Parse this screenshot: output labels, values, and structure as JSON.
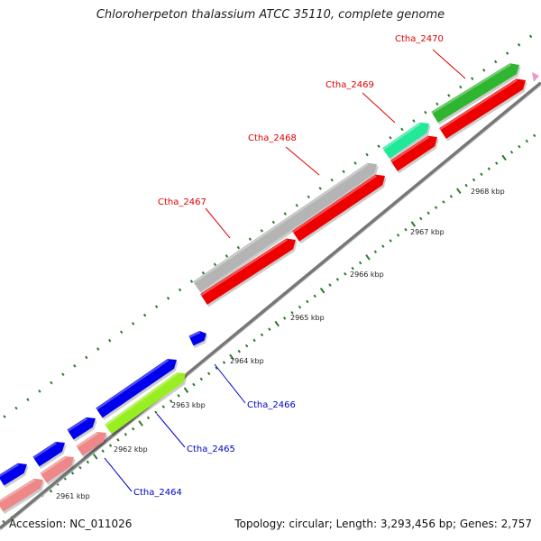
{
  "title": "Chloroherpeton thalassium ATCC 35110, complete genome",
  "footer": {
    "accession": "Accession: NC_011026",
    "summary": "Topology: circular; Length: 3,293,456 bp; Genes: 2,757"
  },
  "scale": {
    "unit": "kbp",
    "ticks": [
      {
        "label": "2961 kbp"
      },
      {
        "label": "2962 kbp"
      },
      {
        "label": "2963 kbp"
      },
      {
        "label": "2964 kbp"
      },
      {
        "label": "2965 kbp"
      },
      {
        "label": "2966 kbp"
      },
      {
        "label": "2967 kbp"
      },
      {
        "label": "2968 kbp"
      }
    ]
  },
  "gene_labels": [
    {
      "name": "Ctha_2470",
      "color": "#dd0000"
    },
    {
      "name": "Ctha_2469",
      "color": "#dd0000"
    },
    {
      "name": "Ctha_2468",
      "color": "#dd0000"
    },
    {
      "name": "Ctha_2467",
      "color": "#dd0000"
    },
    {
      "name": "Ctha_2466",
      "color": "#0000cc"
    },
    {
      "name": "Ctha_2465",
      "color": "#0000cc"
    },
    {
      "name": "Ctha_2464",
      "color": "#0000cc"
    }
  ],
  "colors": {
    "forward_cds": "#2fb52f",
    "reverse_cds": "#ee0000",
    "other_cds": "#0000ee",
    "hypothetical": "#b4b4b4",
    "teal_cds": "#22e89a",
    "salmon_cds": "#ee8888",
    "lime_cds": "#99ee22",
    "backbone": "#777777",
    "tick_green": "#2a7a2a"
  }
}
